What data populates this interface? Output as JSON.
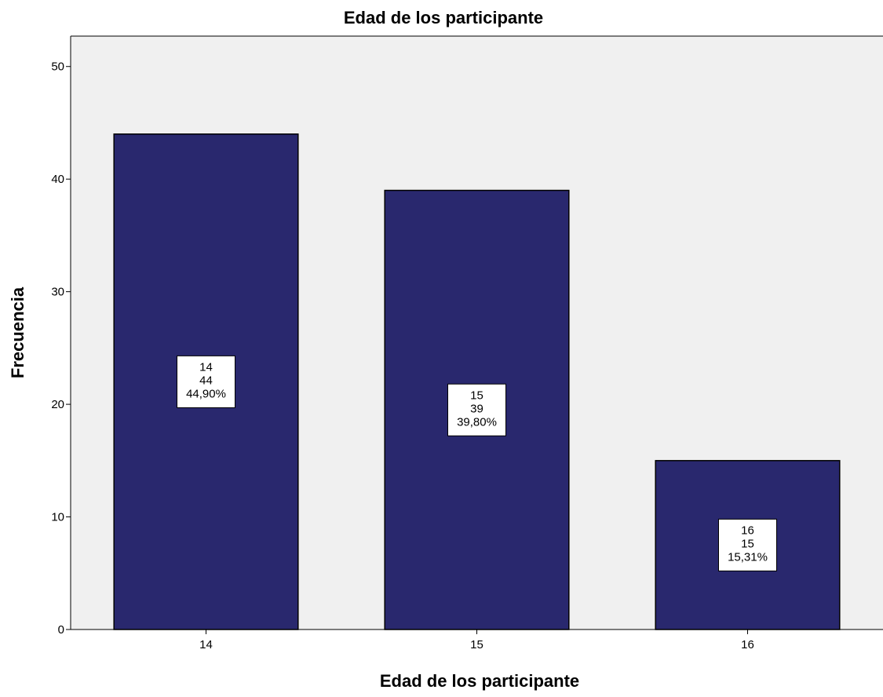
{
  "chart_data": {
    "type": "bar",
    "title": "Edad de los participante",
    "xlabel": "Edad de los participante",
    "ylabel": "Frecuencia",
    "categories": [
      "14",
      "15",
      "16"
    ],
    "values": [
      44,
      39,
      15
    ],
    "percentages": [
      "44,90%",
      "39,80%",
      "15,31%"
    ],
    "ylim": [
      0,
      52.7
    ],
    "yticks": [
      0,
      10,
      20,
      30,
      40,
      50
    ],
    "grid": false,
    "legend": "none",
    "colors": {
      "bar_fill": "#29286e",
      "bar_stroke": "#000000",
      "plot_background": "#f0f0f0",
      "label_box_fill": "#ffffff"
    }
  }
}
